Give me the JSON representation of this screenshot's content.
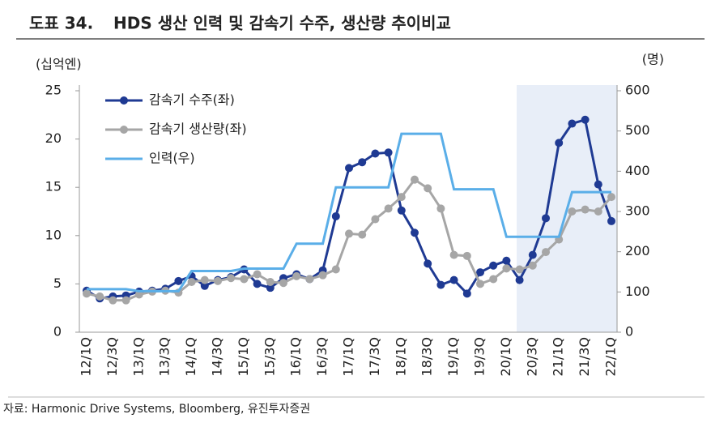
{
  "header": {
    "label": "도표 34.",
    "title": "HDS 생산 인력 및 감속기 수주, 생산량 추이비교"
  },
  "chart_data": {
    "type": "line",
    "y_label": "(십억엔)",
    "y2_label": "(명)",
    "categories": [
      "12/1Q",
      null,
      "12/3Q",
      null,
      "13/1Q",
      null,
      "13/3Q",
      null,
      "14/1Q",
      null,
      "14/3Q",
      null,
      "15/1Q",
      null,
      "15/3Q",
      null,
      "16/1Q",
      null,
      "16/3Q",
      null,
      "17/1Q",
      null,
      "17/3Q",
      null,
      "18/1Q",
      null,
      "18/3Q",
      null,
      "19/1Q",
      null,
      "19/3Q",
      null,
      "20/1Q",
      null,
      "20/3Q",
      null,
      "21/1Q",
      null,
      "21/3Q",
      null,
      "22/1Q"
    ],
    "ylim": [
      0,
      25
    ],
    "yticks": [
      0,
      5,
      10,
      15,
      20,
      25
    ],
    "y2lim": [
      0,
      600
    ],
    "y2ticks": [
      0,
      100,
      200,
      300,
      400,
      500,
      600
    ],
    "legend": "upper left",
    "series": [
      {
        "name": "감속기 수주(좌)",
        "color": "#1f3a93",
        "markers": true,
        "axis": "y",
        "values": [
          4.3,
          3.5,
          3.7,
          3.8,
          4.2,
          4.3,
          4.5,
          5.3,
          5.8,
          4.8,
          5.4,
          5.7,
          6.5,
          5.0,
          4.6,
          5.6,
          6.0,
          5.5,
          6.4,
          12.0,
          17.0,
          17.6,
          18.5,
          18.6,
          12.6,
          10.3,
          7.1,
          4.9,
          5.4,
          4.0,
          6.2,
          6.9,
          7.4,
          5.4,
          8.0,
          11.8,
          19.6,
          21.6,
          22.0,
          15.3,
          11.5
        ]
      },
      {
        "name": "감속기 생산량(좌)",
        "color": "#a6a6a6",
        "markers": true,
        "axis": "y",
        "values": [
          4.0,
          3.7,
          3.3,
          3.3,
          3.9,
          4.2,
          4.3,
          4.1,
          5.2,
          5.4,
          5.3,
          5.6,
          5.5,
          6.0,
          5.2,
          5.1,
          5.8,
          5.5,
          5.9,
          6.5,
          10.2,
          10.1,
          11.7,
          12.8,
          14.0,
          15.8,
          14.9,
          12.8,
          8.0,
          7.9,
          5.0,
          5.5,
          6.6,
          6.5,
          6.9,
          8.3,
          9.6,
          12.5,
          12.7,
          12.5,
          14.0
        ]
      },
      {
        "name": "인력(우)",
        "color": "#5aaee8",
        "markers": false,
        "axis": "y2",
        "values": [
          107,
          107,
          107,
          107,
          102,
          102,
          102,
          102,
          152,
          152,
          152,
          152,
          158,
          158,
          158,
          158,
          220,
          220,
          220,
          360,
          360,
          360,
          360,
          360,
          493,
          493,
          493,
          493,
          355,
          355,
          355,
          355,
          237,
          237,
          237,
          237,
          237,
          348,
          348,
          348,
          348
        ]
      }
    ]
  },
  "source": "자료: Harmonic Drive Systems, Bloomberg, 유진투자증권"
}
